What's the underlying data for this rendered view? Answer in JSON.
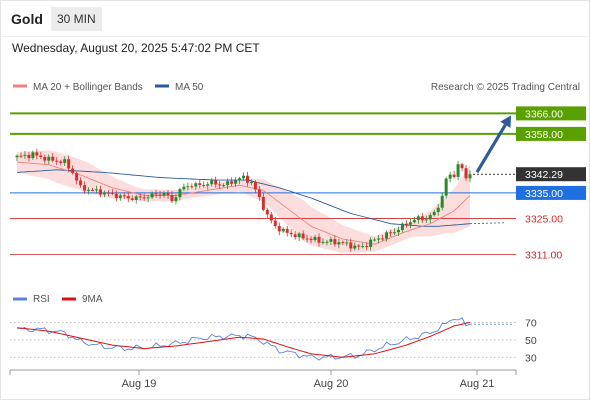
{
  "header": {
    "title": "Gold",
    "timeframe": "30 MIN",
    "datetime": "Wednesday, August 20, 2025 5:47:02 PM CET"
  },
  "legend": {
    "ma20": "MA 20 + Bollinger Bands",
    "ma50": "MA 50",
    "source": "Research © 2025 Trading Central"
  },
  "colors": {
    "ma20": "#f08080",
    "ma50": "#2e5a9c",
    "band": "#fbd4d4",
    "target": "#5aa000",
    "current": "#333333",
    "pivot": "#1f6fe0",
    "support": "#cc2a2a",
    "bull": "#2a8a2a",
    "bear": "#d43030",
    "arrow": "#2e5a9c",
    "rsi": "#5b84d6",
    "rsi_ma": "#dd1111"
  },
  "chart_data": [
    {
      "type": "candlestick",
      "ylim": [
        3303,
        3372
      ],
      "x_ticks": [
        "Aug 19",
        "Aug 20",
        "Aug 21"
      ],
      "candle_count": 115,
      "levels": [
        {
          "value": 3366.0,
          "label": "3366.00",
          "kind": "target"
        },
        {
          "value": 3358.0,
          "label": "3358.00",
          "kind": "target"
        },
        {
          "value": 3342.29,
          "label": "3342.29",
          "kind": "current"
        },
        {
          "value": 3335.0,
          "label": "3335.00",
          "kind": "pivot"
        },
        {
          "value": 3325.0,
          "label": "3325.00",
          "kind": "support"
        },
        {
          "value": 3311.0,
          "label": "3311.00",
          "kind": "support"
        }
      ],
      "close_anchors": [
        [
          0,
          3349
        ],
        [
          4,
          3350
        ],
        [
          8,
          3348
        ],
        [
          12,
          3347
        ],
        [
          14,
          3343
        ],
        [
          16,
          3337
        ],
        [
          19,
          3336
        ],
        [
          22,
          3335
        ],
        [
          25,
          3334
        ],
        [
          28,
          3333
        ],
        [
          31,
          3333
        ],
        [
          34,
          3334
        ],
        [
          37,
          3335
        ],
        [
          39,
          3332
        ],
        [
          41,
          3336
        ],
        [
          43,
          3338
        ],
        [
          46,
          3338
        ],
        [
          49,
          3339
        ],
        [
          52,
          3338
        ],
        [
          55,
          3340
        ],
        [
          57,
          3341
        ],
        [
          59,
          3339
        ],
        [
          61,
          3333
        ],
        [
          63,
          3326
        ],
        [
          65,
          3322
        ],
        [
          67,
          3320
        ],
        [
          69,
          3319
        ],
        [
          71,
          3318
        ],
        [
          74,
          3317
        ],
        [
          77,
          3316
        ],
        [
          80,
          3316
        ],
        [
          83,
          3315
        ],
        [
          85,
          3314
        ],
        [
          87,
          3314
        ],
        [
          89,
          3316
        ],
        [
          92,
          3318
        ],
        [
          95,
          3320
        ],
        [
          97,
          3322
        ],
        [
          99,
          3324
        ],
        [
          101,
          3325
        ],
        [
          103,
          3325
        ],
        [
          105,
          3327
        ],
        [
          106,
          3330
        ],
        [
          107,
          3334
        ],
        [
          108,
          3340
        ],
        [
          109,
          3342
        ],
        [
          110,
          3342
        ],
        [
          111,
          3346
        ],
        [
          112,
          3344
        ],
        [
          113,
          3341
        ],
        [
          114,
          3342.29
        ]
      ],
      "ma20_anchors": [
        [
          0,
          3347
        ],
        [
          8,
          3346
        ],
        [
          16,
          3342
        ],
        [
          24,
          3337
        ],
        [
          32,
          3334
        ],
        [
          40,
          3334
        ],
        [
          48,
          3336
        ],
        [
          56,
          3338
        ],
        [
          62,
          3336
        ],
        [
          68,
          3329
        ],
        [
          74,
          3322
        ],
        [
          82,
          3317
        ],
        [
          90,
          3315
        ],
        [
          98,
          3320
        ],
        [
          104,
          3323
        ],
        [
          110,
          3328
        ],
        [
          114,
          3334
        ]
      ],
      "ma50_anchors": [
        [
          0,
          3343
        ],
        [
          10,
          3344
        ],
        [
          22,
          3343
        ],
        [
          36,
          3341
        ],
        [
          50,
          3340
        ],
        [
          58,
          3340
        ],
        [
          66,
          3337
        ],
        [
          74,
          3333
        ],
        [
          84,
          3327
        ],
        [
          94,
          3323
        ],
        [
          102,
          3322
        ],
        [
          106,
          3322
        ],
        [
          114,
          3323
        ]
      ],
      "band_width_anchors": [
        [
          0,
          4
        ],
        [
          10,
          6
        ],
        [
          18,
          6
        ],
        [
          30,
          2.5
        ],
        [
          44,
          2
        ],
        [
          56,
          2.5
        ],
        [
          64,
          5
        ],
        [
          72,
          8
        ],
        [
          80,
          6
        ],
        [
          90,
          3
        ],
        [
          100,
          3
        ],
        [
          108,
          7
        ],
        [
          114,
          12
        ]
      ],
      "forecast": {
        "from_index": 114,
        "from": 3342.29,
        "to": 3366.0
      }
    },
    {
      "type": "line",
      "name": "RSI",
      "ylim": [
        20,
        82
      ],
      "levels": [
        {
          "value": 70,
          "label": "70"
        },
        {
          "value": 50,
          "label": "50"
        },
        {
          "value": 30,
          "label": "30"
        }
      ],
      "series": [
        {
          "name": "RSI",
          "anchors": [
            [
              0,
              62
            ],
            [
              6,
              62
            ],
            [
              12,
              58
            ],
            [
              16,
              48
            ],
            [
              22,
              42
            ],
            [
              28,
              40
            ],
            [
              34,
              42
            ],
            [
              40,
              46
            ],
            [
              46,
              52
            ],
            [
              52,
              54
            ],
            [
              58,
              55
            ],
            [
              62,
              48
            ],
            [
              66,
              38
            ],
            [
              70,
              34
            ],
            [
              74,
              30
            ],
            [
              80,
              30
            ],
            [
              86,
              32
            ],
            [
              92,
              42
            ],
            [
              98,
              50
            ],
            [
              104,
              58
            ],
            [
              108,
              68
            ],
            [
              110,
              76
            ],
            [
              112,
              72
            ],
            [
              113,
              66
            ],
            [
              114,
              68
            ]
          ]
        },
        {
          "name": "9MA",
          "anchors": [
            [
              0,
              64
            ],
            [
              8,
              60
            ],
            [
              16,
              52
            ],
            [
              24,
              44
            ],
            [
              32,
              40
            ],
            [
              40,
              43
            ],
            [
              48,
              48
            ],
            [
              56,
              53
            ],
            [
              62,
              51
            ],
            [
              68,
              42
            ],
            [
              74,
              34
            ],
            [
              82,
              30
            ],
            [
              90,
              34
            ],
            [
              98,
              44
            ],
            [
              104,
              54
            ],
            [
              110,
              66
            ],
            [
              114,
              70
            ]
          ]
        }
      ]
    }
  ]
}
